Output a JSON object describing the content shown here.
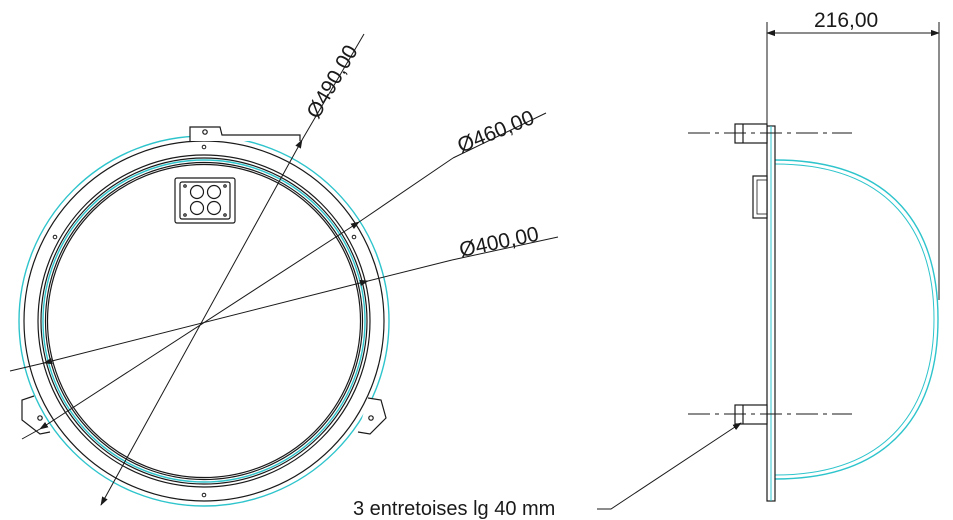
{
  "dimensions": {
    "d490": "Ø490,00",
    "d460": "Ø460,00",
    "d400": "Ø400,00",
    "depth": "216,00"
  },
  "note": {
    "spacers": "3 entretoises lg 40 mm"
  },
  "colors": {
    "line": "#1a1a1a",
    "dome": "#2ec4cc",
    "background": "#ffffff"
  }
}
